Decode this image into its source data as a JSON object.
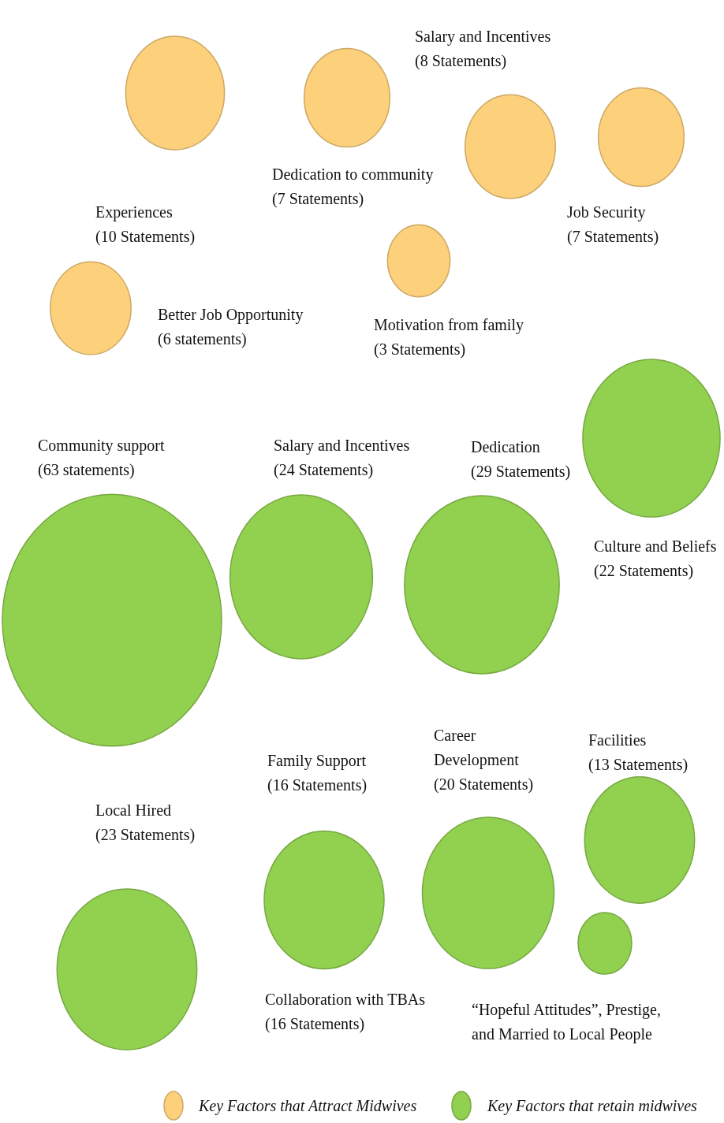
{
  "chart_data": {
    "type": "other",
    "legend": "bottom",
    "categories": [
      "Experiences",
      "Dedication to community",
      "Salary and Incentives",
      "Job Security",
      "Better Job Opportunity",
      "Motivation from family",
      "Community support",
      "Salary and Incentives",
      "Dedication",
      "Culture and Beliefs",
      "Local Hired",
      "Family Support",
      "Collaboration with TBAs",
      "Career\nDevelopment",
      "Facilities",
      "“Hopeful Attitudes”, Prestige,\nand Married to Local People"
    ],
    "series": [
      {
        "name": "Key Factors that Attract Midwives",
        "color": "#fdd07c",
        "values": [
          10,
          7,
          8,
          7,
          6,
          3,
          null,
          null,
          null,
          null,
          null,
          null,
          null,
          null,
          null,
          null
        ],
        "value_labels": [
          "(10 Statements)",
          "(7 Statements)",
          "(8 Statements)",
          "(7 Statements)",
          "(6 statements)",
          "(3 Statements)",
          null,
          null,
          null,
          null,
          null,
          null,
          null,
          null,
          null,
          null
        ]
      },
      {
        "name": "Key Factors that retain midwives",
        "color": "#92d050",
        "values": [
          null,
          null,
          null,
          null,
          null,
          null,
          63,
          24,
          29,
          22,
          23,
          16,
          16,
          20,
          13,
          null
        ],
        "value_labels": [
          null,
          null,
          null,
          null,
          null,
          null,
          "(63 statements)",
          "(24 Statements)",
          "(29 Statements)",
          "(22 Statements)",
          "(23 Statements)",
          "(16 Statements)",
          "(16 Statements)",
          "(20 Statements)",
          "(13 Statements)",
          null
        ]
      }
    ]
  }
}
